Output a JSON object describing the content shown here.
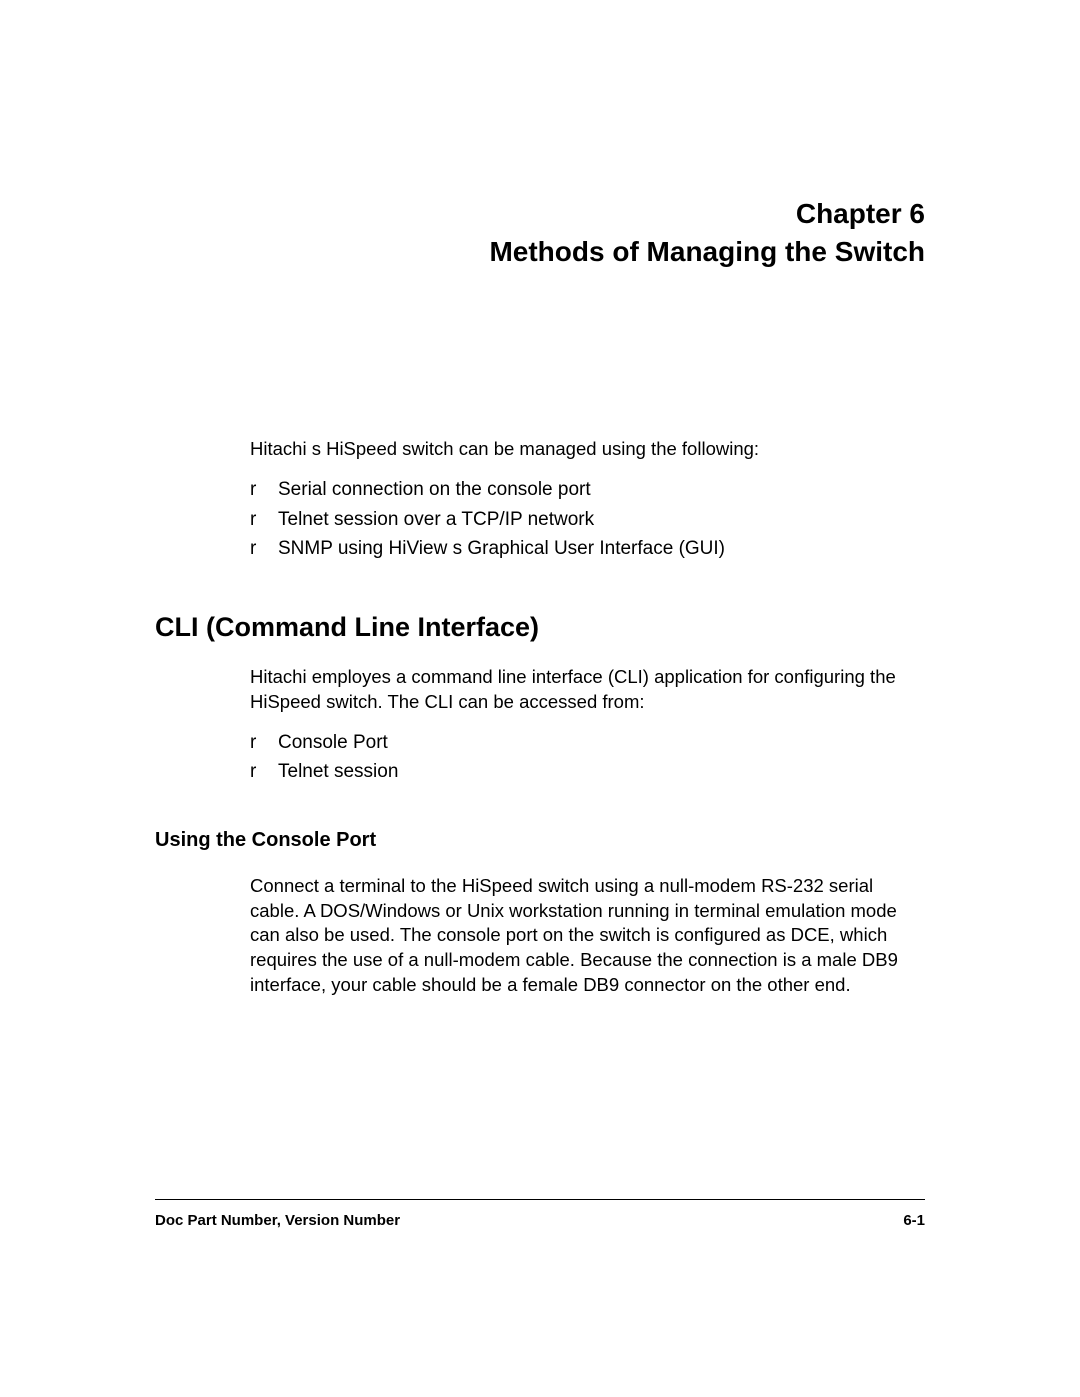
{
  "chapter": {
    "number": "Chapter 6",
    "title": "Methods of Managing the Switch"
  },
  "intro": "Hitachi s HiSpeed switch can be  managed using the following:",
  "methods": {
    "items": [
      {
        "marker": "r",
        "text": "Serial connection on the console port"
      },
      {
        "marker": "r",
        "text": "Telnet session over a TCP/IP network"
      },
      {
        "marker": "r",
        "text": "SNMP using HiView s Graphical User Interface (GUI)"
      }
    ]
  },
  "section": {
    "heading": "CLI (Command Line Interface)",
    "text": "Hitachi employes a command line interface (CLI) application for configuring the HiSpeed switch. The CLI can be accessed from:",
    "items": [
      {
        "marker": "r",
        "text": "Console Port"
      },
      {
        "marker": "r",
        "text": "Telnet session"
      }
    ]
  },
  "subsection": {
    "heading": "Using the Console Port",
    "text": "Connect a terminal to the HiSpeed switch using a null-modem RS-232 serial cable.  A DOS/Windows or Unix workstation running in terminal emulation mode can also be used.  The console port on the switch is configured as DCE, which requires the use of a null-modem cable.  Because the connection is a male DB9 interface, your cable should be a female DB9 connector on the other end."
  },
  "footer": {
    "left": "Doc Part Number, Version Number",
    "right": "6-1"
  }
}
